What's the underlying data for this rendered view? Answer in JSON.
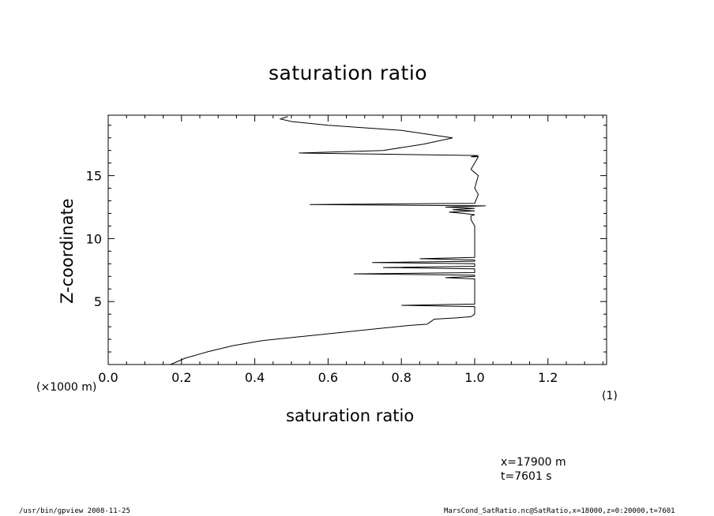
{
  "chart_data": {
    "type": "line",
    "title": "saturation ratio",
    "xlabel": "saturation ratio",
    "ylabel": "Z-coordinate",
    "x_unit": "(1)",
    "y_unit": "(×1000 m)",
    "xlim": [
      0,
      1.36
    ],
    "ylim": [
      0,
      19.8
    ],
    "x_ticks": [
      0.0,
      0.2,
      0.4,
      0.6,
      0.8,
      1.0,
      1.2
    ],
    "x_tick_labels": [
      "0.0",
      "0.2",
      "0.4",
      "0.6",
      "0.8",
      "1.0",
      "1.2"
    ],
    "y_ticks": [
      5,
      10,
      15
    ],
    "y_tick_labels": [
      "5",
      "10",
      "15"
    ],
    "grid": false,
    "series": [
      {
        "x": [
          0.17,
          0.21,
          0.27,
          0.34,
          0.42,
          0.52,
          0.62,
          0.72,
          0.82,
          0.87,
          0.875,
          0.89,
          0.95,
          0.99,
          1.0,
          1.0,
          0.8,
          1.0,
          1.0,
          0.92,
          1.0,
          1.0,
          0.99,
          0.67,
          1.0,
          1.0,
          0.75,
          1.0,
          1.0,
          0.72,
          1.0,
          1.0,
          0.85,
          1.0,
          1.0,
          1.0,
          0.99,
          0.99,
          1.0,
          0.97,
          0.93,
          1.0,
          0.94,
          1.0,
          0.92,
          1.03,
          0.55,
          1.0,
          1.01,
          1.0,
          1.01,
          0.99,
          1.0,
          1.01,
          0.99,
          1.01,
          0.52,
          0.75,
          0.86,
          0.94,
          0.8,
          0.6,
          0.5,
          0.47,
          0.49
        ],
        "y": [
          0.0,
          0.5,
          1.0,
          1.5,
          1.9,
          2.2,
          2.5,
          2.8,
          3.1,
          3.2,
          3.3,
          3.6,
          3.7,
          3.8,
          4.0,
          4.6,
          4.7,
          4.8,
          6.8,
          6.9,
          7.0,
          7.1,
          7.1,
          7.2,
          7.3,
          7.6,
          7.7,
          7.8,
          8.0,
          8.1,
          8.2,
          8.3,
          8.4,
          8.5,
          10.0,
          11.0,
          11.5,
          11.8,
          11.9,
          12.0,
          12.1,
          12.2,
          12.3,
          12.4,
          12.5,
          12.6,
          12.7,
          12.8,
          13.5,
          14.0,
          15.0,
          15.5,
          16.0,
          16.5,
          16.5,
          16.6,
          16.8,
          17.0,
          17.5,
          18.0,
          18.6,
          19.0,
          19.3,
          19.5,
          19.7
        ]
      }
    ],
    "annotations": [
      "x=17900  m",
      "t=7601  s"
    ]
  },
  "footer": {
    "left": "/usr/bin/gpview   2008-11-25",
    "right": "MarsCond_SatRatio.nc@SatRatio,x=18000,z=0:20000,t=7601"
  }
}
